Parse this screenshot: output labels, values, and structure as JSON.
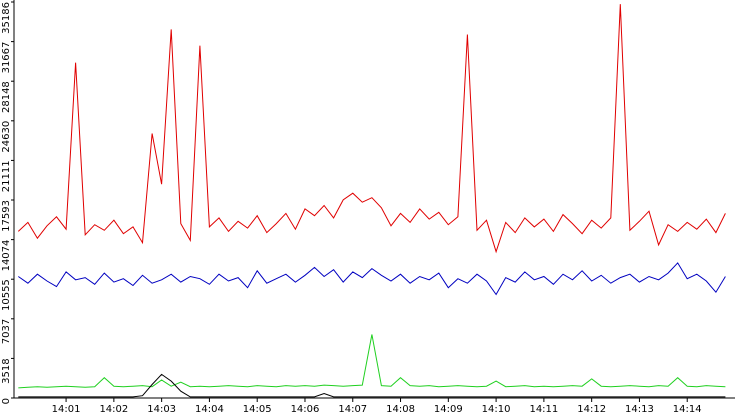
{
  "chart_data": {
    "type": "line",
    "x": [
      0,
      0.2,
      0.4,
      0.6,
      0.8,
      1,
      1.2,
      1.4,
      1.6,
      1.8,
      2,
      2.2,
      2.4,
      2.6,
      2.8,
      3,
      3.2,
      3.4,
      3.6,
      3.8,
      4,
      4.2,
      4.4,
      4.6,
      4.8,
      5,
      5.2,
      5.4,
      5.6,
      5.8,
      6,
      6.2,
      6.4,
      6.6,
      6.8,
      7,
      7.2,
      7.4,
      7.6,
      7.8,
      8,
      8.2,
      8.4,
      8.6,
      8.8,
      9,
      9.2,
      9.4,
      9.6,
      9.8,
      10,
      10.2,
      10.4,
      10.6,
      10.8,
      11,
      11.2,
      11.4,
      11.6,
      11.8,
      12,
      12.2,
      12.4,
      12.6,
      12.8,
      13,
      13.2,
      13.4,
      13.6,
      13.8,
      14,
      14.2,
      14.4,
      14.6,
      14.8
    ],
    "xlim": [
      -0.09,
      15
    ],
    "xticks": [
      {
        "value": 1,
        "label": "14:01"
      },
      {
        "value": 2,
        "label": "14:02"
      },
      {
        "value": 3,
        "label": "14:03"
      },
      {
        "value": 4,
        "label": "14:04"
      },
      {
        "value": 5,
        "label": "14:05"
      },
      {
        "value": 6,
        "label": "14:06"
      },
      {
        "value": 7,
        "label": "14:07"
      },
      {
        "value": 8,
        "label": "14:08"
      },
      {
        "value": 9,
        "label": "14:09"
      },
      {
        "value": 10,
        "label": "14:10"
      },
      {
        "value": 11,
        "label": "14:11"
      },
      {
        "value": 12,
        "label": "14:12"
      },
      {
        "value": 13,
        "label": "14:13"
      },
      {
        "value": 14,
        "label": "14:14"
      }
    ],
    "ylim": [
      0,
      35186
    ],
    "yticks": [
      0,
      3518,
      7037,
      10555,
      14074,
      17593,
      21111,
      24630,
      28148,
      31667,
      35186
    ],
    "series": [
      {
        "color": "#e00000",
        "values": [
          14800,
          15600,
          14200,
          15300,
          16100,
          15000,
          29800,
          14500,
          15400,
          14900,
          15800,
          14600,
          15200,
          13800,
          23500,
          19000,
          32750,
          15500,
          14000,
          31300,
          15200,
          16000,
          14800,
          15700,
          15100,
          16200,
          14700,
          15500,
          16400,
          15000,
          16800,
          16200,
          17100,
          16000,
          17600,
          18200,
          17400,
          17800,
          16900,
          15300,
          16400,
          15600,
          16800,
          15900,
          16500,
          15400,
          16100,
          32300,
          14900,
          15800,
          13000,
          15600,
          14700,
          16000,
          15200,
          15900,
          14800,
          16300,
          15500,
          14600,
          15800,
          15100,
          16000,
          35000,
          14900,
          15700,
          16600,
          13600,
          15400,
          14800,
          15600,
          15000,
          15900,
          14700,
          16400
        ]
      },
      {
        "color": "#0000c0",
        "values": [
          10800,
          10200,
          11000,
          10400,
          9900,
          11200,
          10500,
          10700,
          10100,
          11100,
          10300,
          10600,
          10000,
          10900,
          10200,
          10500,
          11000,
          10300,
          10800,
          10600,
          10100,
          11000,
          10400,
          10700,
          9800,
          11300,
          10200,
          10600,
          11000,
          10300,
          10900,
          11600,
          10800,
          11400,
          10300,
          11200,
          10700,
          11500,
          10900,
          10400,
          11000,
          10200,
          10800,
          10500,
          11100,
          9800,
          10600,
          10200,
          11000,
          10400,
          9200,
          10700,
          10300,
          11200,
          10500,
          10800,
          10100,
          11000,
          10500,
          11300,
          10400,
          10900,
          10200,
          10700,
          11000,
          10300,
          10800,
          10500,
          11100,
          12000,
          10600,
          11000,
          10400,
          9400,
          10800
        ]
      },
      {
        "color": "#20d020",
        "values": [
          900,
          950,
          1000,
          950,
          1000,
          1050,
          1000,
          950,
          1000,
          1800,
          1050,
          1000,
          1050,
          1100,
          1000,
          1600,
          1050,
          1400,
          1000,
          1050,
          1000,
          1050,
          1100,
          1050,
          1000,
          1100,
          1050,
          1000,
          1100,
          1050,
          1100,
          1050,
          1150,
          1100,
          1050,
          1100,
          1150,
          5640,
          1100,
          1050,
          1800,
          1100,
          1050,
          1100,
          1000,
          1050,
          1100,
          1050,
          1000,
          1050,
          1500,
          1000,
          1050,
          1100,
          1000,
          1050,
          1000,
          1050,
          1100,
          1050,
          1700,
          1050,
          1000,
          1050,
          1100,
          1050,
          1000,
          1100,
          1050,
          1800,
          1050,
          1000,
          1100,
          1050,
          1000
        ]
      },
      {
        "color": "#000000",
        "values": [
          100,
          100,
          100,
          100,
          100,
          100,
          100,
          100,
          100,
          100,
          100,
          100,
          100,
          200,
          1200,
          2100,
          1500,
          600,
          100,
          100,
          100,
          100,
          100,
          100,
          100,
          100,
          100,
          100,
          100,
          100,
          100,
          100,
          400,
          100,
          100,
          100,
          100,
          100,
          100,
          100,
          100,
          100,
          100,
          100,
          100,
          100,
          100,
          100,
          100,
          100,
          100,
          100,
          100,
          100,
          100,
          100,
          100,
          100,
          100,
          100,
          100,
          100,
          100,
          100,
          100,
          100,
          100,
          100,
          100,
          100,
          100,
          100,
          100,
          100,
          100
        ]
      }
    ]
  }
}
